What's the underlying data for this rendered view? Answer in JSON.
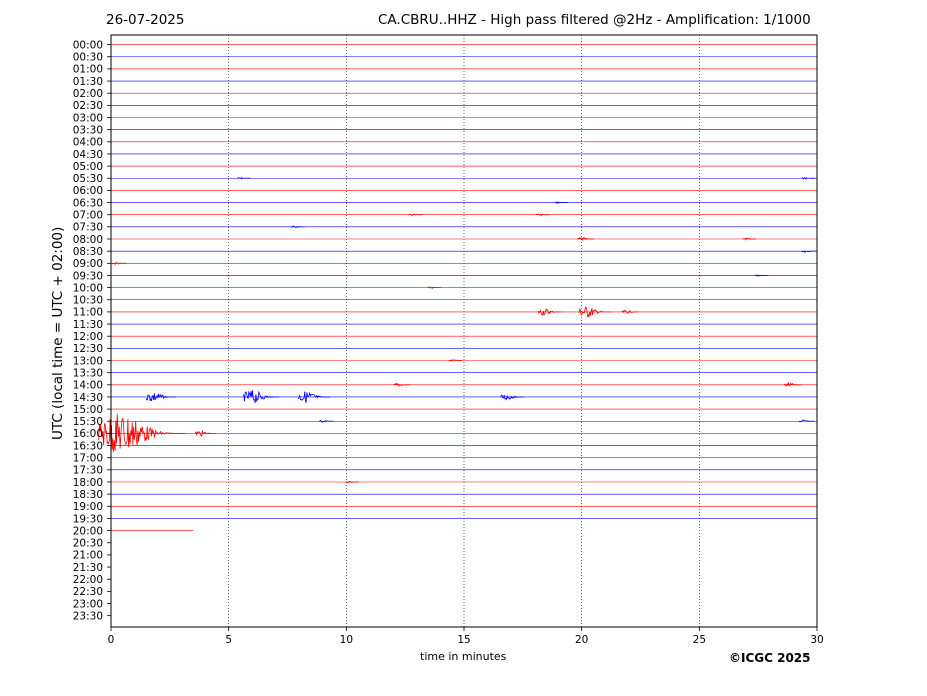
{
  "header": {
    "date": "26-07-2025",
    "title": "CA.CBRU..HHZ - High pass filtered @2Hz - Amplification: 1/1000"
  },
  "footer": {
    "copyright": "©ICGC 2025"
  },
  "chart_data": {
    "type": "line",
    "title": "CA.CBRU..HHZ - High pass filtered @2Hz - Amplification: 1/1000",
    "xlabel": "time in minutes",
    "ylabel": "UTC (local time = UTC + 02:00)",
    "xlim": [
      0,
      30
    ],
    "xticks": [
      0,
      5,
      10,
      15,
      20,
      25,
      30
    ],
    "grid_x": "dotted vertical lines at 5-minute intervals",
    "yticks": [
      "00:00",
      "00:30",
      "01:00",
      "01:30",
      "02:00",
      "02:30",
      "03:00",
      "03:30",
      "04:00",
      "04:30",
      "05:00",
      "05:30",
      "06:00",
      "06:30",
      "07:00",
      "07:30",
      "08:00",
      "08:30",
      "09:00",
      "09:30",
      "10:00",
      "10:30",
      "11:00",
      "11:30",
      "12:00",
      "12:30",
      "13:00",
      "13:30",
      "14:00",
      "14:30",
      "15:00",
      "15:30",
      "16:00",
      "16:30",
      "17:00",
      "17:30",
      "18:00",
      "18:30",
      "19:00",
      "19:30",
      "20:00",
      "20:30",
      "21:00",
      "21:30",
      "22:00",
      "22:30",
      "23:00",
      "23:30"
    ],
    "trace_colors": [
      "#ff0000",
      "#0000ff"
    ],
    "trace_end": {
      "row": "20:00",
      "minute": 3.5
    },
    "events": [
      {
        "row": "05:30",
        "minute": 5.5,
        "amp": 0.15
      },
      {
        "row": "05:30",
        "minute": 29.5,
        "amp": 0.15
      },
      {
        "row": "06:30",
        "minute": 19.0,
        "amp": 0.15
      },
      {
        "row": "07:00",
        "minute": 12.8,
        "amp": 0.2
      },
      {
        "row": "07:00",
        "minute": 18.2,
        "amp": 0.15
      },
      {
        "row": "07:30",
        "minute": 7.8,
        "amp": 0.15
      },
      {
        "row": "08:00",
        "minute": 20.0,
        "amp": 0.3
      },
      {
        "row": "08:00",
        "minute": 27.0,
        "amp": 0.15
      },
      {
        "row": "08:30",
        "minute": 29.5,
        "amp": 0.2
      },
      {
        "row": "09:00",
        "minute": 0.2,
        "amp": 0.2
      },
      {
        "row": "09:30",
        "minute": 27.5,
        "amp": 0.15
      },
      {
        "row": "10:00",
        "minute": 13.6,
        "amp": 0.15
      },
      {
        "row": "11:00",
        "minute": 18.4,
        "amp": 0.6
      },
      {
        "row": "11:00",
        "minute": 20.2,
        "amp": 1.0
      },
      {
        "row": "11:00",
        "minute": 21.9,
        "amp": 0.3
      },
      {
        "row": "13:00",
        "minute": 14.5,
        "amp": 0.15
      },
      {
        "row": "14:00",
        "minute": 12.2,
        "amp": 0.3
      },
      {
        "row": "14:00",
        "minute": 28.8,
        "amp": 0.35
      },
      {
        "row": "14:30",
        "minute": 1.8,
        "amp": 0.9
      },
      {
        "row": "14:30",
        "minute": 6.0,
        "amp": 1.2
      },
      {
        "row": "14:30",
        "minute": 8.3,
        "amp": 1.0
      },
      {
        "row": "14:30",
        "minute": 16.8,
        "amp": 0.6
      },
      {
        "row": "15:30",
        "minute": 9.0,
        "amp": 0.2
      },
      {
        "row": "15:30",
        "minute": 29.4,
        "amp": 0.25
      },
      {
        "row": "16:00",
        "minute": 0.4,
        "amp": 3.5
      },
      {
        "row": "16:00",
        "minute": 3.8,
        "amp": 0.5
      },
      {
        "row": "18:00",
        "minute": 10.1,
        "amp": 0.15
      }
    ]
  }
}
